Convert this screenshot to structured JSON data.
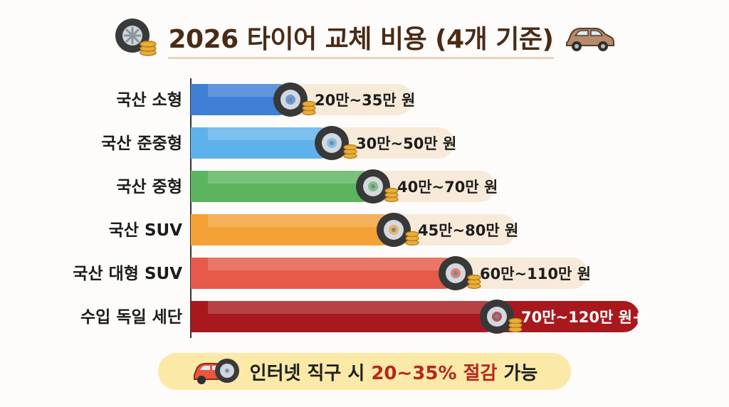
{
  "title": "2026 타이어 교체 비용 (4개 기준)",
  "icons": {
    "title_left": "tire-with-coins-icon",
    "title_right": "car-icon",
    "bar_marker": "tire-with-coins-icon",
    "footer_left": "car-with-tire-icon"
  },
  "colors": {
    "title": "#4a2b16",
    "axis": "#333333",
    "label_bg": "#f7ead9",
    "footer_bg": "#fbe9a8",
    "highlight": "#b5281e"
  },
  "chart_data": {
    "type": "bar",
    "orientation": "horizontal",
    "title": "2026 타이어 교체 비용 (4개 기준)",
    "unit": "만 원",
    "xlabel": "",
    "ylabel": "",
    "categories": [
      "국산 소형",
      "국산 준중형",
      "국산 중형",
      "국산 SUV",
      "국산 대형 SUV",
      "수입 독일 세단"
    ],
    "series": [
      {
        "min": [
          20,
          30,
          40,
          45,
          60,
          70
        ],
        "max": [
          35,
          50,
          70,
          80,
          110,
          120
        ],
        "labels": [
          "20만~35만 원",
          "30만~50만 원",
          "40만~70만 원",
          "45만~80만 원",
          "60만~110만 원",
          "70만~120만 원+"
        ],
        "colors": [
          "#3f7fd6",
          "#5eb2ec",
          "#5cb55e",
          "#f4a236",
          "#e55a48",
          "#a8191e"
        ]
      }
    ],
    "grid": false,
    "legend": "none"
  },
  "footer": {
    "prefix": "인터넷 직구 시 ",
    "highlight": "20~35% 절감",
    "suffix": " 가능"
  }
}
